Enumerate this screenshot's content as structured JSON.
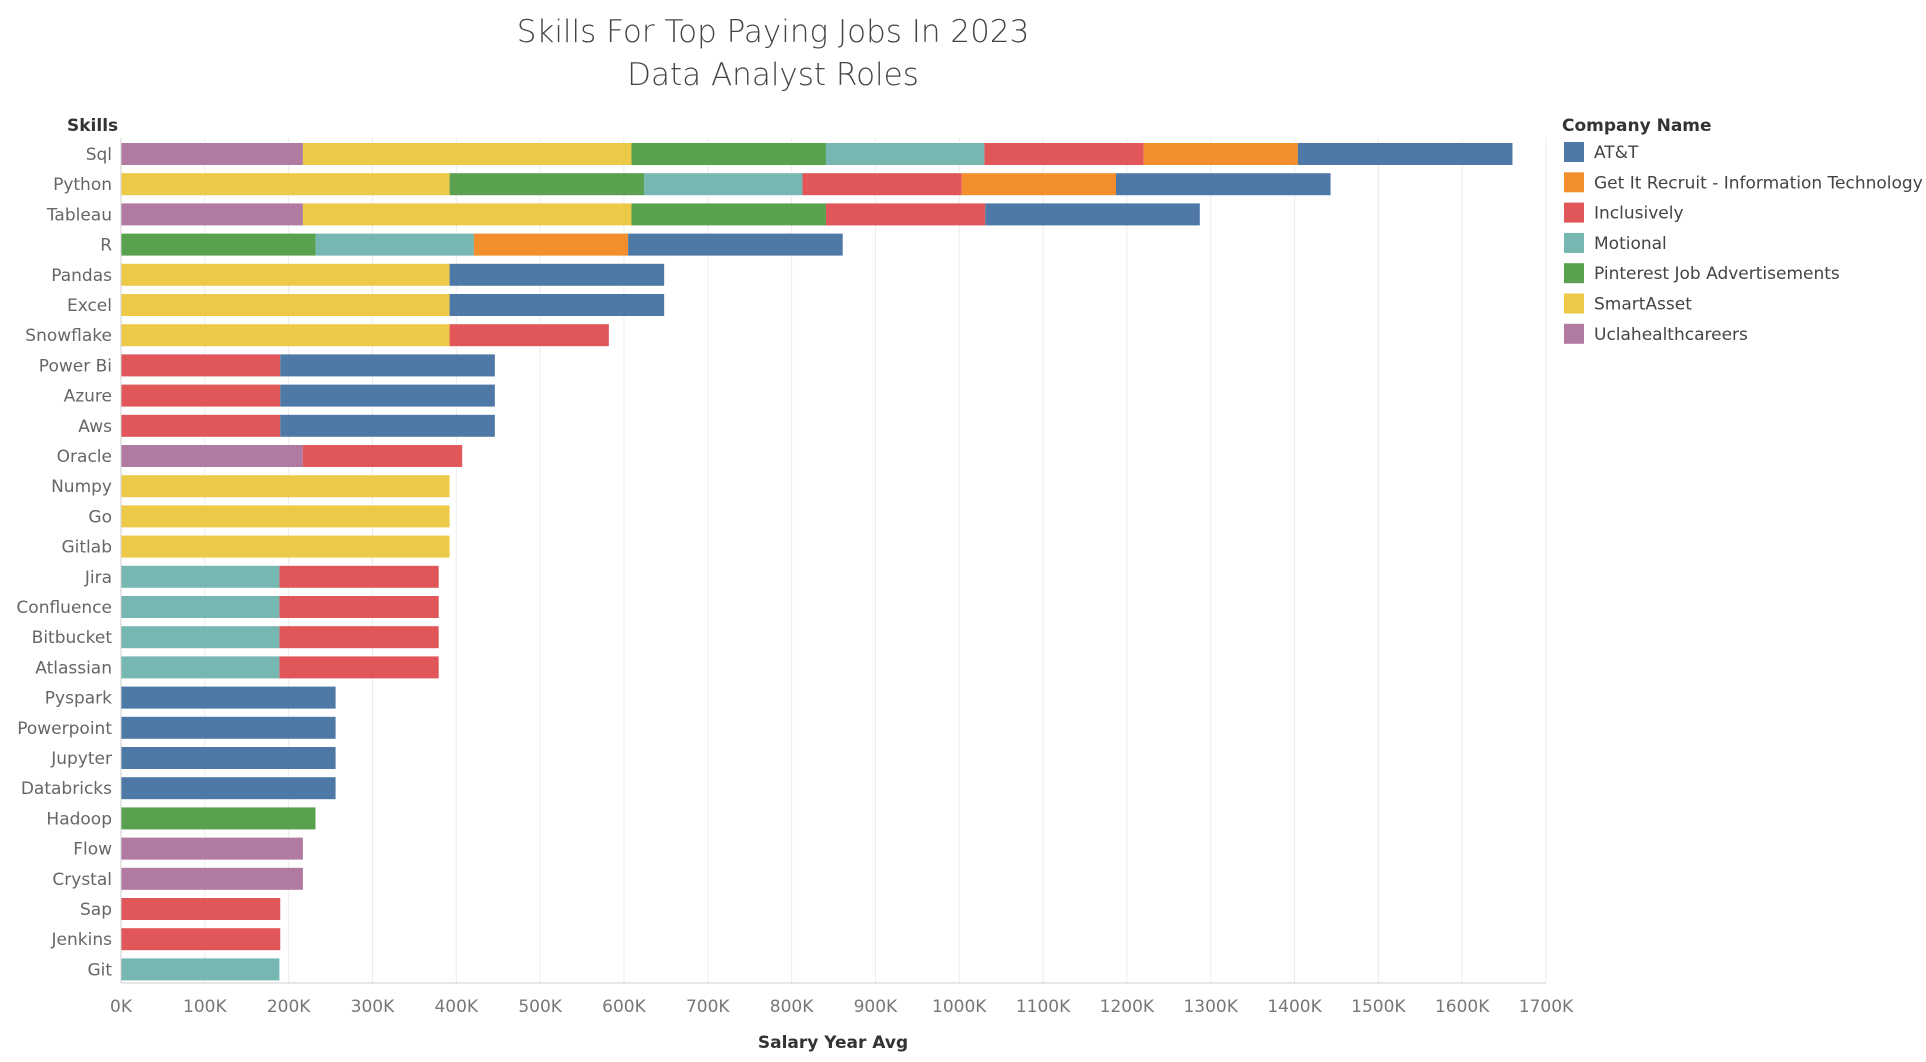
{
  "chart_data": {
    "type": "bar",
    "orientation": "horizontal",
    "stacked": true,
    "title": [
      "Skills For Top Paying Jobs In 2023",
      "Data Analyst Roles"
    ],
    "ylabel": "Skills",
    "xlabel": "Salary Year Avg",
    "xlim": [
      0,
      1700000
    ],
    "xticks": [
      0,
      100000,
      200000,
      300000,
      400000,
      500000,
      600000,
      700000,
      800000,
      900000,
      1000000,
      1100000,
      1200000,
      1300000,
      1400000,
      1500000,
      1600000,
      1700000
    ],
    "xtick_labels": [
      "0K",
      "100K",
      "200K",
      "300K",
      "400K",
      "500K",
      "600K",
      "700K",
      "800K",
      "900K",
      "1000K",
      "1100K",
      "1200K",
      "1300K",
      "1400K",
      "1500K",
      "1600K",
      "1700K"
    ],
    "grid": "vertical",
    "legend": {
      "title": "Company Name",
      "placement": "right",
      "entries": [
        "AT&T",
        "Get It Recruit - Information Technology",
        "Inclusively",
        "Motional",
        "Pinterest Job Advertisements",
        "SmartAsset",
        "Uclahealthcareers"
      ]
    },
    "colors": {
      "AT&T": "#4e79a7",
      "Get It Recruit - Information Technology": "#f28e2b",
      "Inclusively": "#e15759",
      "Motional": "#76b7b2",
      "Pinterest Job Advertisements": "#59a14f",
      "SmartAsset": "#edc948",
      "Uclahealthcareers": "#b07aa1"
    },
    "stack_order": [
      "Uclahealthcareers",
      "SmartAsset",
      "Pinterest Job Advertisements",
      "Motional",
      "Inclusively",
      "Get It Recruit - Information Technology",
      "AT&T"
    ],
    "categories": [
      "Sql",
      "Python",
      "Tableau",
      "R",
      "Pandas",
      "Excel",
      "Snowflake",
      "Power Bi",
      "Azure",
      "Aws",
      "Oracle",
      "Numpy",
      "Go",
      "Gitlab",
      "Jira",
      "Confluence",
      "Bitbucket",
      "Atlassian",
      "Pyspark",
      "Powerpoint",
      "Jupyter",
      "Databricks",
      "Hadoop",
      "Flow",
      "Crystal",
      "Sap",
      "Jenkins",
      "Git"
    ],
    "series": [
      {
        "name": "Uclahealthcareers",
        "values": [
          217000,
          0,
          217000,
          0,
          0,
          0,
          0,
          0,
          0,
          0,
          217000,
          0,
          0,
          0,
          0,
          0,
          0,
          0,
          0,
          0,
          0,
          0,
          0,
          217000,
          217000,
          0,
          0,
          0
        ]
      },
      {
        "name": "SmartAsset",
        "values": [
          392000,
          392000,
          392000,
          0,
          392000,
          392000,
          392000,
          0,
          0,
          0,
          0,
          392000,
          392000,
          392000,
          0,
          0,
          0,
          0,
          0,
          0,
          0,
          0,
          0,
          0,
          0,
          0,
          0,
          0
        ]
      },
      {
        "name": "Pinterest Job Advertisements",
        "values": [
          232000,
          232000,
          232000,
          232000,
          0,
          0,
          0,
          0,
          0,
          0,
          0,
          0,
          0,
          0,
          0,
          0,
          0,
          0,
          0,
          0,
          0,
          0,
          232000,
          0,
          0,
          0,
          0,
          0
        ]
      },
      {
        "name": "Motional",
        "values": [
          189000,
          189000,
          0,
          189000,
          0,
          0,
          0,
          0,
          0,
          0,
          0,
          0,
          0,
          0,
          189000,
          189000,
          189000,
          189000,
          0,
          0,
          0,
          0,
          0,
          0,
          0,
          0,
          0,
          189000
        ]
      },
      {
        "name": "Inclusively",
        "values": [
          190000,
          190000,
          190000,
          0,
          0,
          0,
          190000,
          190000,
          190000,
          190000,
          190000,
          0,
          0,
          0,
          190000,
          190000,
          190000,
          190000,
          0,
          0,
          0,
          0,
          0,
          0,
          0,
          190000,
          190000,
          0
        ]
      },
      {
        "name": "Get It Recruit - Information Technology",
        "values": [
          184000,
          184000,
          0,
          184000,
          0,
          0,
          0,
          0,
          0,
          0,
          0,
          0,
          0,
          0,
          0,
          0,
          0,
          0,
          0,
          0,
          0,
          0,
          0,
          0,
          0,
          0,
          0,
          0
        ]
      },
      {
        "name": "AT&T",
        "values": [
          256000,
          256000,
          256000,
          256000,
          256000,
          256000,
          0,
          256000,
          256000,
          256000,
          0,
          0,
          0,
          0,
          0,
          0,
          0,
          0,
          256000,
          256000,
          256000,
          256000,
          0,
          0,
          0,
          0,
          0,
          0
        ]
      }
    ]
  }
}
